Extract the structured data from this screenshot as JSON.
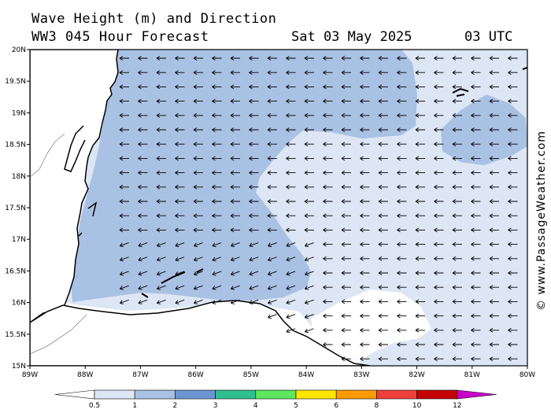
{
  "title_line1": "Wave Height (m) and Direction",
  "title_line2": "WW3 045 Hour Forecast",
  "date": "Sat 03 May 2025",
  "time": "03 UTC",
  "watermark": "© www.PassageWeather.com",
  "map": {
    "lon_range": [
      -89,
      -80
    ],
    "lat_range": [
      15,
      20
    ],
    "lon_ticks": [
      "89W",
      "88W",
      "87W",
      "86W",
      "85W",
      "84W",
      "83W",
      "82W",
      "81W",
      "80W"
    ],
    "lat_ticks": [
      "20N",
      "19.5N",
      "19N",
      "18.5N",
      "18N",
      "17.5N",
      "17N",
      "16.5N",
      "16N",
      "15.5N",
      "15N"
    ],
    "arrow_direction": "from-east",
    "background_wave_color": "#dce6f5"
  },
  "legend": {
    "labels": [
      "0.5",
      "1",
      "2",
      "3",
      "4",
      "5",
      "6",
      "8",
      "10",
      "12"
    ],
    "colors": [
      "#dce6f5",
      "#a9c1e3",
      "#6c96d2",
      "#2fbf8f",
      "#5ee65e",
      "#ffe600",
      "#ff9a00",
      "#f0403c",
      "#c40000",
      "#c800c8"
    ]
  }
}
